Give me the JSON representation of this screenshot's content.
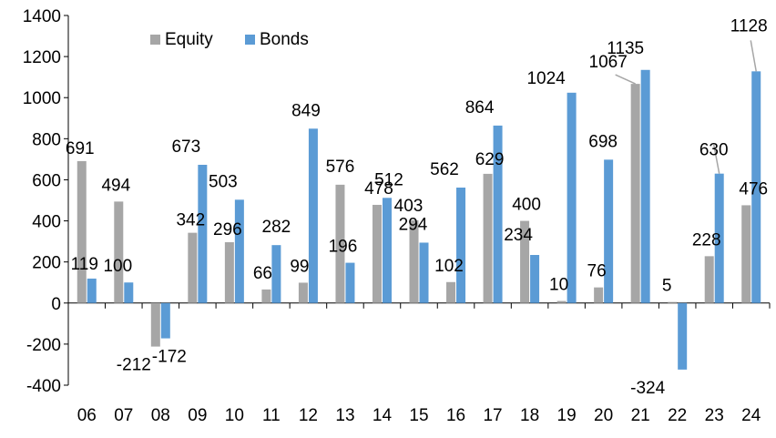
{
  "chart_data": {
    "type": "bar",
    "categories": [
      "06",
      "07",
      "08",
      "09",
      "10",
      "11",
      "12",
      "13",
      "14",
      "15",
      "16",
      "17",
      "18",
      "19",
      "20",
      "21",
      "22",
      "23",
      "24"
    ],
    "series": [
      {
        "name": "Equity",
        "color": "#a6a6a6",
        "values": [
          691,
          494,
          -212,
          342,
          296,
          66,
          99,
          576,
          478,
          403,
          102,
          629,
          400,
          10,
          76,
          1067,
          5,
          228,
          476
        ]
      },
      {
        "name": "Bonds",
        "color": "#5b9bd5",
        "values": [
          119,
          100,
          -172,
          673,
          503,
          282,
          849,
          196,
          512,
          294,
          562,
          864,
          234,
          1024,
          698,
          1135,
          -324,
          630,
          1128
        ]
      }
    ],
    "ylim": [
      -400,
      1400
    ],
    "yticks": [
      -400,
      -200,
      0,
      200,
      400,
      600,
      800,
      1000,
      1200,
      1400
    ],
    "ytick_labels": [
      "-400",
      "-200",
      "0",
      "200",
      "400",
      "600",
      "800",
      "1000",
      "1200",
      "1400"
    ],
    "xlabel": "",
    "ylabel": "",
    "title": "",
    "grid": false,
    "legend": {
      "position": "top-left",
      "entries": [
        "Equity",
        "Bonds"
      ]
    }
  }
}
